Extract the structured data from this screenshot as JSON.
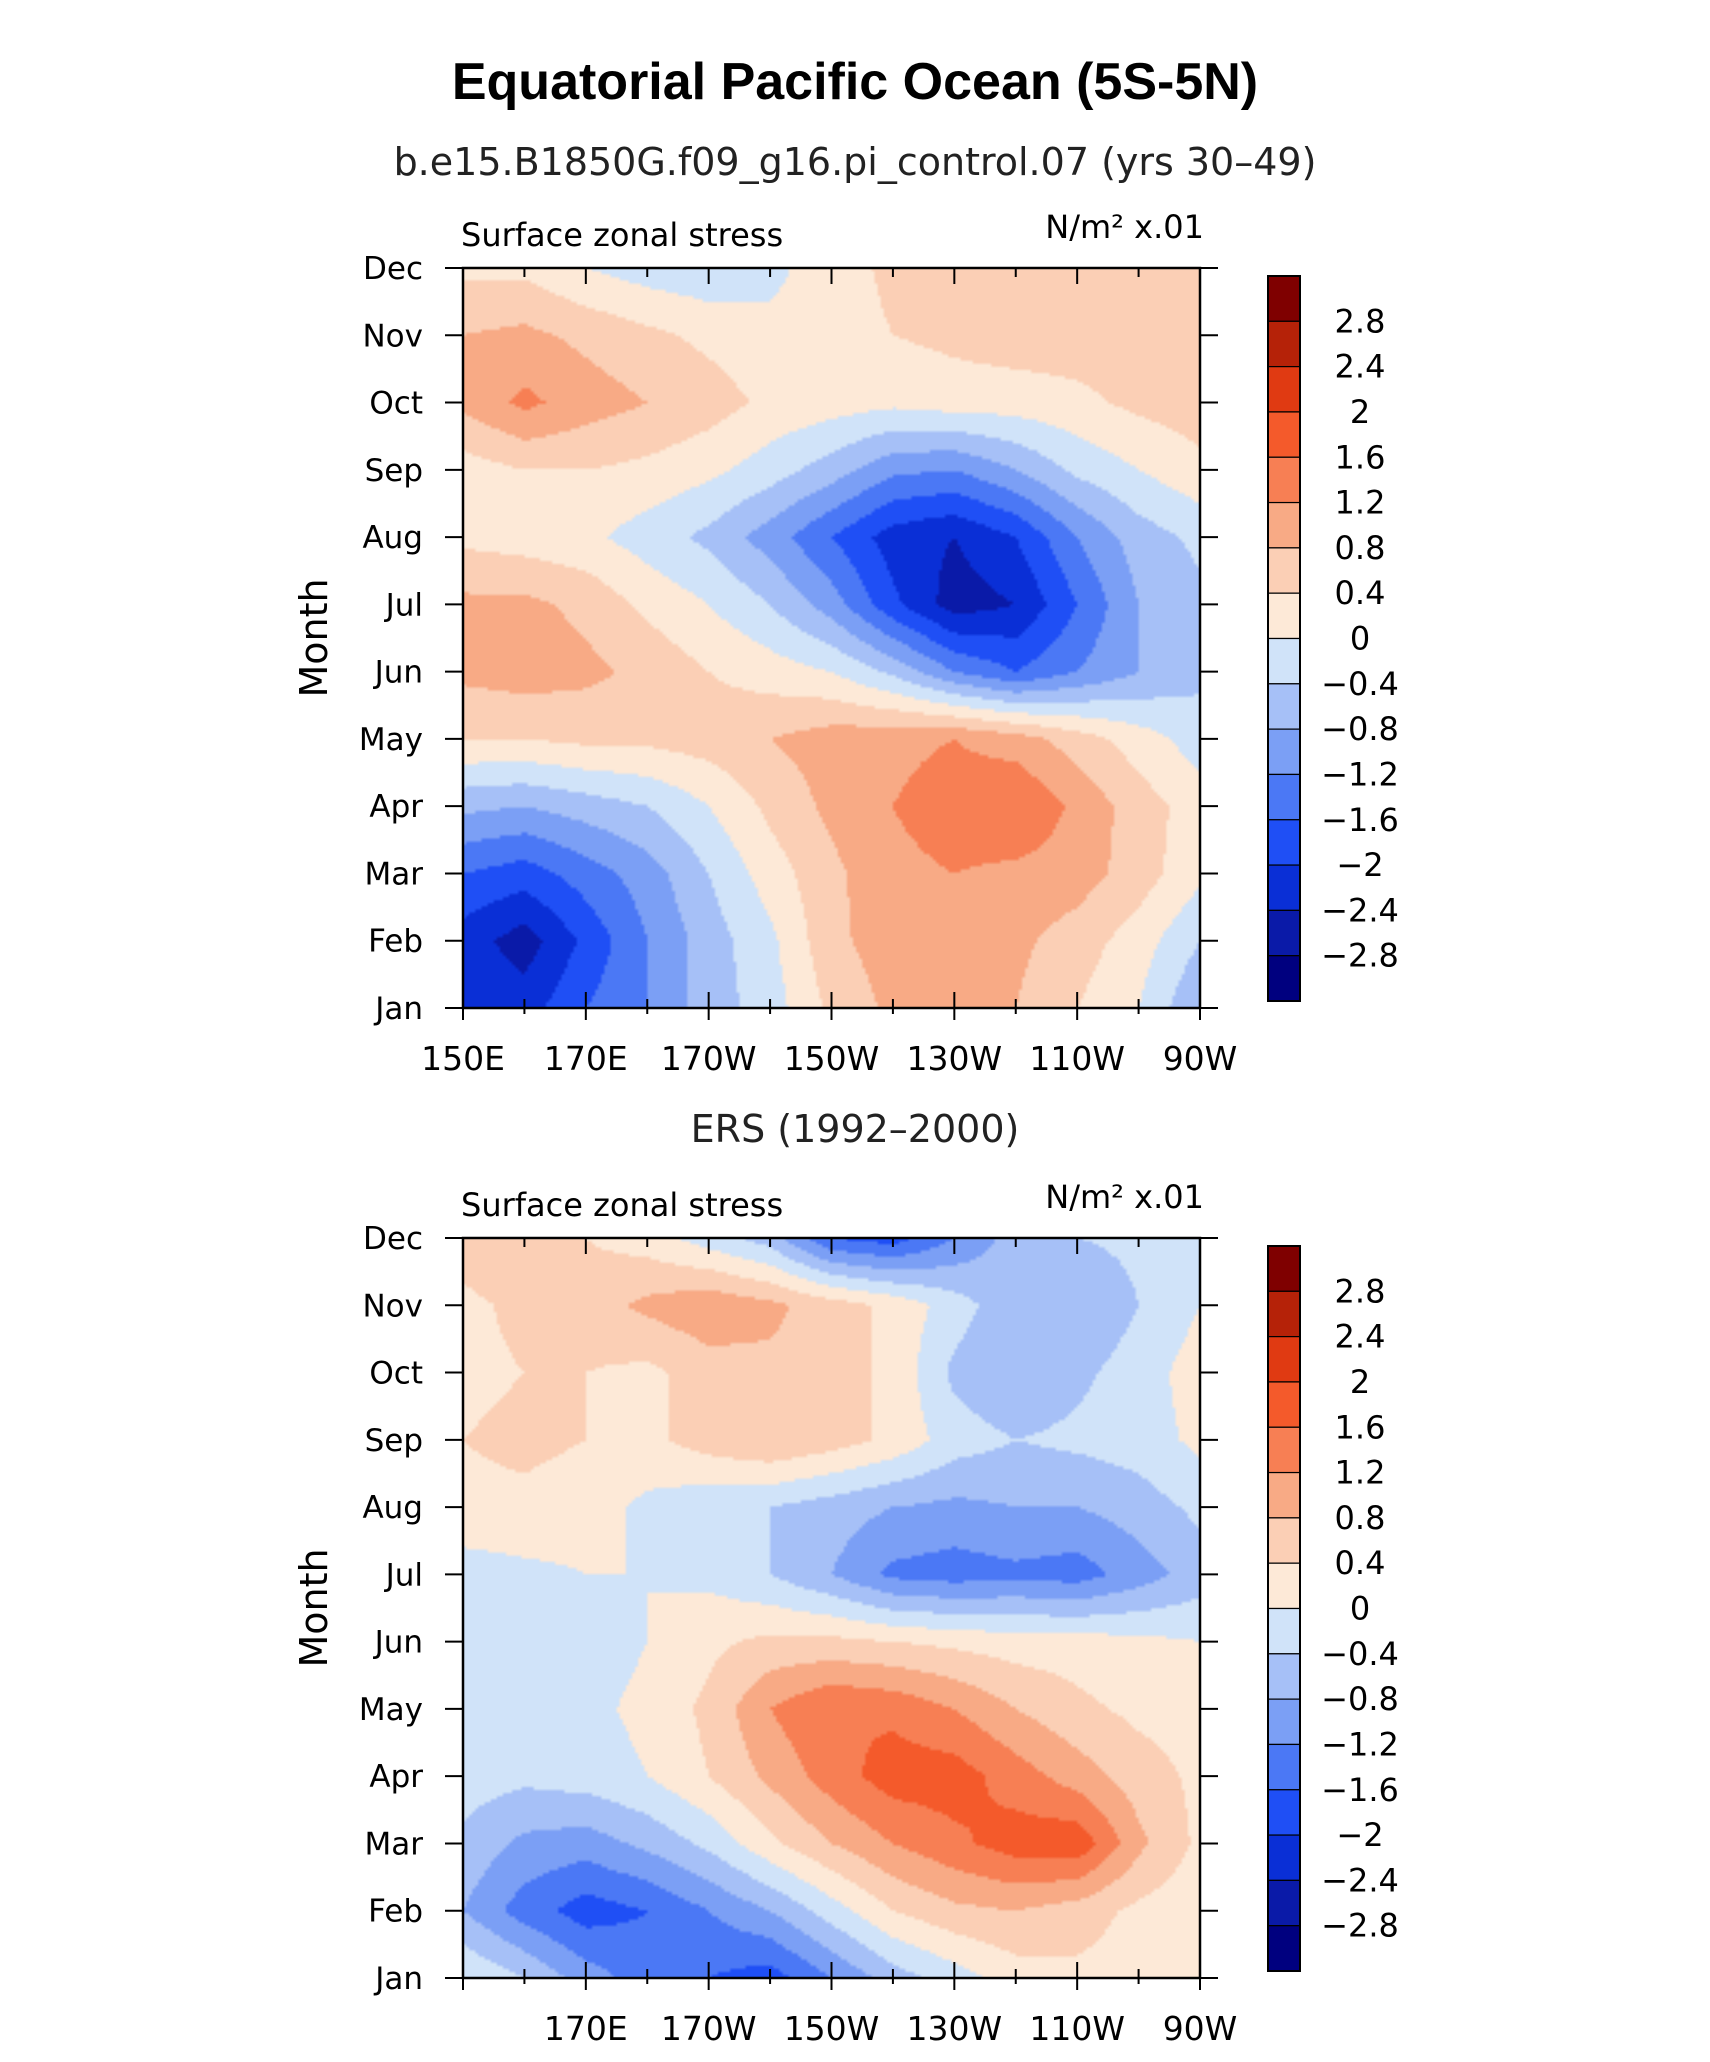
{
  "figure": {
    "title": "Equatorial Pacific Ocean (5S-5N)"
  },
  "chart_data": [
    {
      "type": "heatmap",
      "panel_title": "b.e15.B1850G.f09_g16.pi_control.07 (yrs 30–49)",
      "left_string": "Surface zonal stress",
      "right_string": "N/m² x.01",
      "ylabel": "Month",
      "x_ticks": [
        "150E",
        "170E",
        "170W",
        "150W",
        "130W",
        "110W",
        "90W"
      ],
      "y_ticks": [
        "Jan",
        "Feb",
        "Mar",
        "Apr",
        "May",
        "Jun",
        "Jul",
        "Aug",
        "Sep",
        "Oct",
        "Nov",
        "Dec"
      ],
      "xlim": [
        150,
        270
      ],
      "colorbar_labels": [
        "2.8",
        "2.4",
        "2",
        "1.6",
        "1.2",
        "0.8",
        "0.4",
        "0",
        "−0.4",
        "−0.8",
        "−1.2",
        "−1.6",
        "−2",
        "−2.4",
        "−2.8"
      ],
      "levels": [
        -2.8,
        -2.4,
        -2,
        -1.6,
        -1.2,
        -0.8,
        -0.4,
        0,
        0.4,
        0.8,
        1.2,
        1.6,
        2,
        2.4,
        2.8
      ],
      "colors": [
        "#00007f",
        "#0a1aa8",
        "#0a2fd6",
        "#1f4ff5",
        "#4b78f5",
        "#7b9ff5",
        "#a6c0f7",
        "#d0e3f9",
        "#fde9d7",
        "#fbcfb5",
        "#f8aa85",
        "#f77f54",
        "#f45a2b",
        "#e03a12",
        "#b52208",
        "#7f0000"
      ],
      "x": [
        150,
        160,
        170,
        180,
        190,
        200,
        210,
        220,
        230,
        240,
        250,
        260,
        270
      ],
      "y": [
        1,
        2,
        3,
        4,
        5,
        6,
        7,
        8,
        9,
        10,
        11,
        12
      ],
      "z": [
        [
          -2.0,
          -2.2,
          -1.6,
          -1.2,
          -0.6,
          -0.2,
          0.5,
          0.9,
          1.1,
          0.8,
          0.4,
          0.0,
          -0.8
        ],
        [
          -2.2,
          -2.6,
          -1.9,
          -1.2,
          -0.6,
          -0.1,
          0.7,
          1.0,
          1.1,
          0.9,
          0.6,
          0.2,
          -0.4
        ],
        [
          -1.6,
          -1.8,
          -1.4,
          -1.0,
          -0.4,
          0.2,
          0.7,
          1.1,
          1.2,
          1.1,
          1.0,
          0.6,
          0.1
        ],
        [
          -0.7,
          -0.8,
          -0.6,
          -0.4,
          0.0,
          0.5,
          0.9,
          1.2,
          1.4,
          1.6,
          1.1,
          0.6,
          0.2
        ],
        [
          0.4,
          0.4,
          0.5,
          0.5,
          0.6,
          0.8,
          1.0,
          1.1,
          1.2,
          1.0,
          0.6,
          0.2,
          -0.2
        ],
        [
          0.9,
          1.0,
          0.9,
          0.7,
          0.4,
          0.2,
          0.0,
          -0.5,
          -1.2,
          -1.6,
          -1.2,
          -0.8,
          -0.5
        ],
        [
          0.9,
          0.9,
          0.7,
          0.3,
          0.0,
          -0.4,
          -1.0,
          -1.9,
          -2.6,
          -2.4,
          -1.6,
          -0.8,
          -0.5
        ],
        [
          0.3,
          0.2,
          0.1,
          -0.2,
          -0.5,
          -1.0,
          -1.6,
          -2.2,
          -2.4,
          -2.0,
          -1.2,
          -0.6,
          -0.3
        ],
        [
          0.2,
          0.4,
          0.4,
          0.3,
          0.1,
          -0.2,
          -0.6,
          -1.1,
          -1.2,
          -0.8,
          -0.3,
          0.0,
          0.3
        ],
        [
          0.9,
          1.3,
          1.0,
          0.8,
          0.6,
          0.3,
          0.2,
          0.1,
          0.2,
          0.2,
          0.3,
          0.5,
          0.6
        ],
        [
          0.8,
          0.9,
          0.7,
          0.5,
          0.3,
          0.1,
          0.2,
          0.4,
          0.5,
          0.6,
          0.6,
          0.6,
          0.7
        ],
        [
          0.3,
          0.3,
          0.0,
          -0.2,
          -0.3,
          -0.1,
          0.2,
          0.5,
          0.7,
          0.6,
          0.5,
          0.6,
          0.7
        ]
      ]
    },
    {
      "type": "heatmap",
      "panel_title": "ERS (1992–2000)",
      "left_string": "Surface zonal stress",
      "right_string": "N/m² x.01",
      "ylabel": "Month",
      "x_ticks": [
        "170E",
        "170W",
        "150W",
        "130W",
        "110W",
        "90W"
      ],
      "y_ticks": [
        "Jan",
        "Feb",
        "Mar",
        "Apr",
        "May",
        "Jun",
        "Jul",
        "Aug",
        "Sep",
        "Oct",
        "Nov",
        "Dec"
      ],
      "xlim": [
        150,
        270
      ],
      "colorbar_labels": [
        "2.8",
        "2.4",
        "2",
        "1.6",
        "1.2",
        "0.8",
        "0.4",
        "0",
        "−0.4",
        "−0.8",
        "−1.2",
        "−1.6",
        "−2",
        "−2.4",
        "−2.8"
      ],
      "levels": [
        -2.8,
        -2.4,
        -2,
        -1.6,
        -1.2,
        -0.8,
        -0.4,
        0,
        0.4,
        0.8,
        1.2,
        1.6,
        2,
        2.4,
        2.8
      ],
      "colors": [
        "#00007f",
        "#0a1aa8",
        "#0a2fd6",
        "#1f4ff5",
        "#4b78f5",
        "#7b9ff5",
        "#a6c0f7",
        "#d0e3f9",
        "#fde9d7",
        "#fbcfb5",
        "#f8aa85",
        "#f77f54",
        "#f45a2b",
        "#e03a12",
        "#b52208",
        "#7f0000"
      ],
      "x": [
        150,
        160,
        170,
        180,
        190,
        200,
        210,
        220,
        230,
        240,
        250,
        260,
        270
      ],
      "y": [
        1,
        2,
        3,
        4,
        5,
        6,
        7,
        8,
        9,
        10,
        11,
        12
      ],
      "z": [
        [
          0.0,
          -0.4,
          -1.0,
          -1.4,
          -1.6,
          -1.8,
          -1.2,
          -0.6,
          -0.2,
          0.2,
          0.3,
          0.2,
          0.0
        ],
        [
          -0.8,
          -1.4,
          -1.8,
          -1.6,
          -1.2,
          -0.8,
          -0.2,
          0.4,
          0.7,
          0.8,
          0.6,
          0.3,
          0.1
        ],
        [
          -0.5,
          -0.9,
          -1.0,
          -0.7,
          -0.3,
          0.3,
          0.8,
          1.2,
          1.5,
          1.8,
          1.9,
          0.9,
          0.3
        ],
        [
          -0.2,
          -0.3,
          -0.2,
          0.0,
          0.4,
          0.9,
          1.4,
          1.8,
          1.8,
          1.4,
          1.0,
          0.6,
          0.3
        ],
        [
          -0.2,
          -0.2,
          -0.1,
          0.1,
          0.5,
          1.2,
          1.6,
          1.5,
          1.2,
          0.8,
          0.5,
          0.3,
          0.2
        ],
        [
          -0.4,
          -0.3,
          -0.2,
          0.0,
          0.3,
          0.5,
          0.5,
          0.4,
          0.3,
          0.2,
          0.2,
          0.1,
          0.0
        ],
        [
          -0.2,
          -0.1,
          0.0,
          0.0,
          -0.1,
          -0.4,
          -0.8,
          -1.3,
          -1.4,
          -1.3,
          -1.4,
          -1.0,
          -0.6
        ],
        [
          0.3,
          0.3,
          0.2,
          -0.1,
          -0.3,
          -0.4,
          -0.6,
          -0.8,
          -0.9,
          -0.8,
          -0.8,
          -0.6,
          -0.3
        ],
        [
          0.4,
          0.5,
          0.4,
          0.3,
          0.6,
          0.8,
          0.6,
          0.3,
          -0.2,
          -0.4,
          -0.3,
          -0.2,
          0.1
        ],
        [
          0.3,
          0.4,
          0.4,
          0.3,
          0.6,
          0.7,
          0.6,
          0.3,
          -0.5,
          -0.8,
          -0.5,
          -0.2,
          0.2
        ],
        [
          0.3,
          0.5,
          0.6,
          0.9,
          1.1,
          0.9,
          0.6,
          0.3,
          -0.2,
          -0.7,
          -0.8,
          -0.4,
          0.0
        ],
        [
          0.6,
          0.8,
          0.4,
          0.2,
          -0.2,
          -0.6,
          -1.6,
          -1.8,
          -1.2,
          -0.6,
          -0.4,
          -0.3,
          0.0
        ]
      ]
    }
  ]
}
